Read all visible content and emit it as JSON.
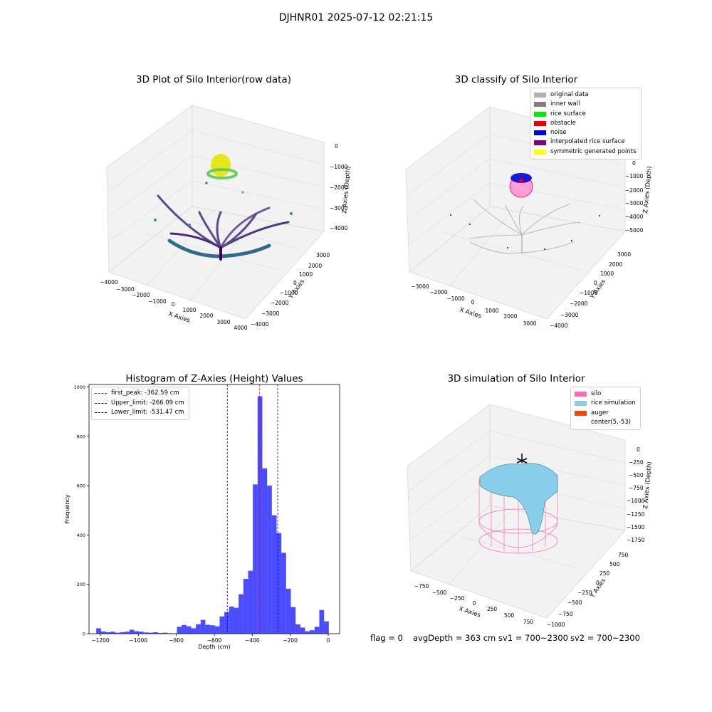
{
  "figure": {
    "suptitle": "DJHNR01 2025-07-12 02:21:15"
  },
  "panels": {
    "raw": {
      "title": "3D Plot of Silo Interior(row data)",
      "x_label": "X Axies",
      "y_label": "Y Axies",
      "z_label": "Z Axies (Depth)",
      "x_ticks": [
        "−4000",
        "−3000",
        "−2000",
        "−1000",
        "0",
        "1000",
        "2000",
        "3000",
        "4000"
      ],
      "y_ticks": [
        "−4000",
        "−3000",
        "−2000",
        "−1000",
        "0",
        "1000",
        "2000",
        "3000"
      ],
      "z_ticks": [
        "−4000",
        "−3000",
        "−2000",
        "−1000",
        "0"
      ]
    },
    "classify": {
      "title": "3D classify of Silo Interior",
      "x_label": "X Axies",
      "y_label": "Y Axies",
      "z_label": "Z Axies (Depth)",
      "x_ticks": [
        "−3000",
        "−2000",
        "−1000",
        "0",
        "1000",
        "2000",
        "3000"
      ],
      "y_ticks": [
        "−4000",
        "−3000",
        "−2000",
        "−1000",
        "0",
        "1000",
        "2000",
        "3000"
      ],
      "z_ticks": [
        "−5000",
        "−4000",
        "−3000",
        "−2000",
        "−1000",
        "0",
        "1000"
      ],
      "legend": [
        {
          "label": "original data",
          "color": "#b0b0b0"
        },
        {
          "label": "inner wall",
          "color": "#808080"
        },
        {
          "label": "rice surface",
          "color": "#00ee00"
        },
        {
          "label": "obstacle",
          "color": "#ee0000"
        },
        {
          "label": "noise",
          "color": "#0000ee"
        },
        {
          "label": "interpolated rice surface",
          "color": "#800080"
        },
        {
          "label": "symmetric generated points",
          "color": "#ffff00"
        }
      ]
    },
    "sim": {
      "title": "3D simulation of Silo Interior",
      "x_label": "X Axies",
      "y_label": "Y Axies",
      "z_label": "Z Axies (Depth)",
      "x_ticks": [
        "−750",
        "−500",
        "−250",
        "0",
        "250",
        "500",
        "750"
      ],
      "y_ticks": [
        "−1000",
        "−750",
        "−500",
        "−250",
        "0",
        "250",
        "500",
        "750"
      ],
      "z_ticks": [
        "−1750",
        "−1500",
        "−1250",
        "−1000",
        "−750",
        "−500",
        "−250",
        "0"
      ],
      "legend": [
        {
          "label": "silo",
          "color": "#ff69b4"
        },
        {
          "label": "rice simulation",
          "color": "#87ceeb"
        },
        {
          "label": "auger",
          "color": "#ff4500"
        },
        {
          "label": "center(5,-53)",
          "color": ""
        }
      ]
    }
  },
  "footer": {
    "flag": "flag = 0",
    "avg": "avgDepth = 363 cm",
    "sv1": "sv1 = 700~2300",
    "sv2": "sv2 = 700~2300"
  },
  "chart_data": {
    "type": "bar",
    "title": "Histogram of Z-Axies (Height) Values",
    "xlabel": "Depth (cm)",
    "ylabel": "Frequency",
    "xlim": [
      -1260,
      60
    ],
    "ylim": [
      0,
      1010
    ],
    "x_ticks": [
      -1200,
      -1000,
      -800,
      -600,
      -400,
      -200,
      0
    ],
    "y_ticks": [
      0,
      200,
      400,
      600,
      800,
      1000
    ],
    "bar_color": "#0000ff",
    "bin_edges": [
      -1222,
      -1197,
      -1172,
      -1147,
      -1122,
      -1097,
      -1072,
      -1047,
      -1022,
      -997,
      -972,
      -947,
      -922,
      -897,
      -872,
      -847,
      -822,
      -797,
      -772,
      -747,
      -722,
      -697,
      -672,
      -647,
      -622,
      -597,
      -572,
      -547,
      -522,
      -497,
      -472,
      -447,
      -422,
      -397,
      -372,
      -347,
      -322,
      -297,
      -272,
      -247,
      -222,
      -197,
      -172,
      -147,
      -122,
      -97,
      -72,
      -47,
      -22,
      3
    ],
    "values": [
      22,
      9,
      6,
      8,
      4,
      6,
      8,
      16,
      10,
      8,
      5,
      4,
      6,
      3,
      4,
      2,
      1,
      28,
      35,
      30,
      22,
      38,
      56,
      36,
      34,
      30,
      70,
      88,
      110,
      105,
      160,
      222,
      255,
      605,
      962,
      670,
      600,
      480,
      408,
      328,
      182,
      108,
      38,
      25,
      10,
      14,
      28,
      96,
      50
    ],
    "vlines": [
      {
        "label": "first_peak: -362.59 cm",
        "x": -362.59,
        "color": "#ff0000"
      },
      {
        "label": "Upper_limit: -266.09 cm",
        "x": -266.09,
        "color": "#0000ff"
      },
      {
        "label": "Lower_limit: -531.47 cm",
        "x": -531.47,
        "color": "#0000ff"
      }
    ]
  }
}
